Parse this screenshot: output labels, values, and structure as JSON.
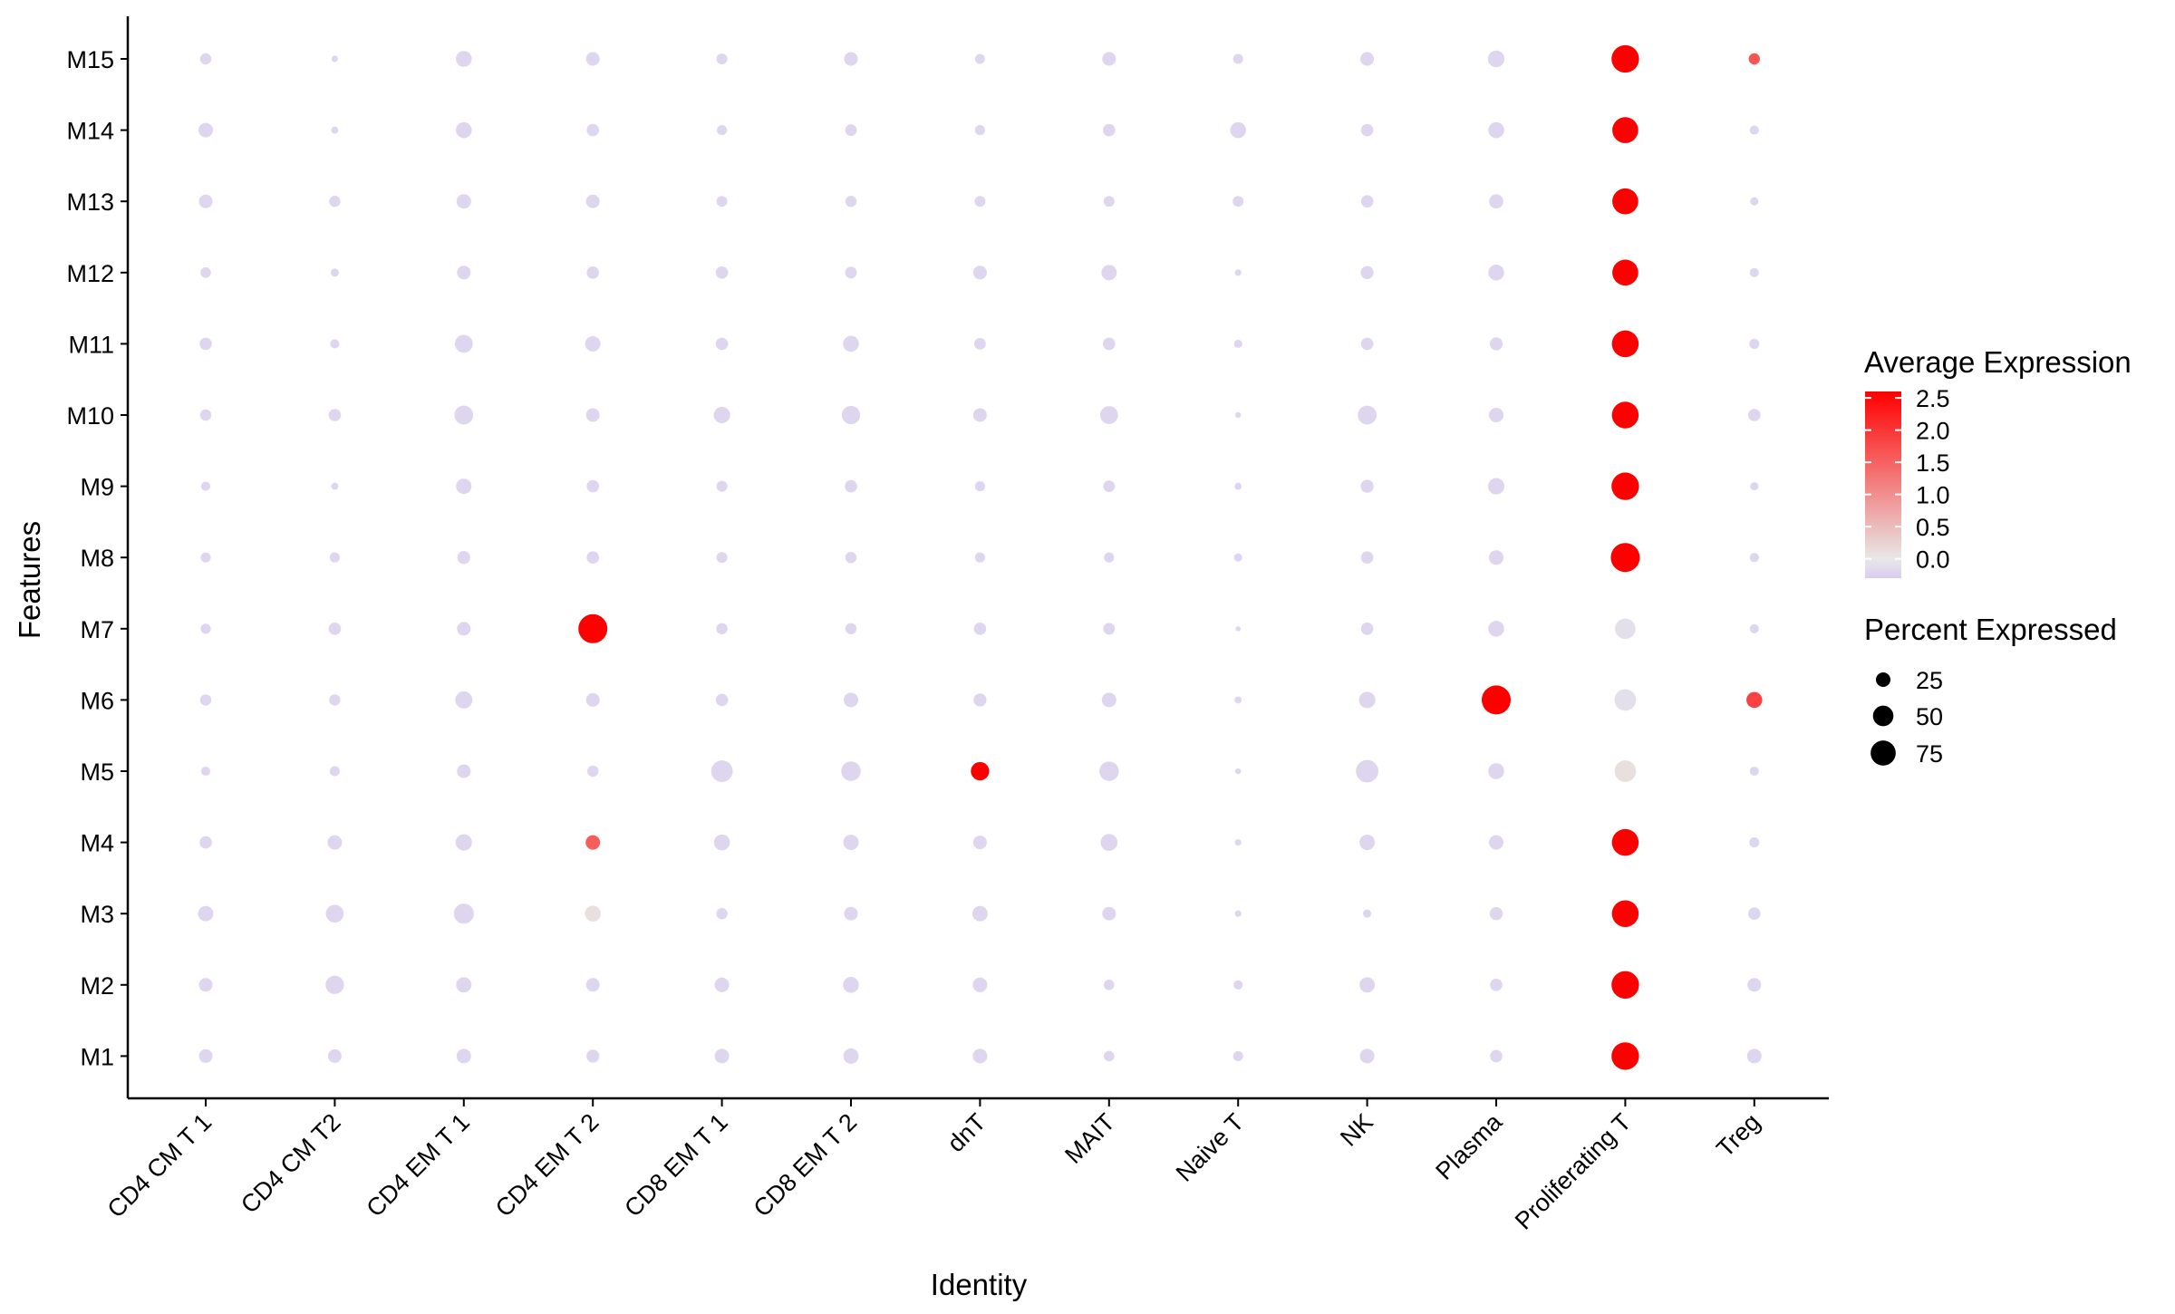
{
  "chart_data": {
    "type": "dot",
    "xlabel": "Identity",
    "ylabel": "Features",
    "categories_x": [
      "CD4 CM T 1",
      "CD4 CM T2",
      "CD4 EM T 1",
      "CD4 EM T 2",
      "CD8 EM T 1",
      "CD8 EM T 2",
      "dnT",
      "MAIT",
      "Naive T",
      "NK",
      "Plasma",
      "Proliferating T",
      "Treg"
    ],
    "categories_y": [
      "M1",
      "M2",
      "M3",
      "M4",
      "M5",
      "M6",
      "M7",
      "M8",
      "M9",
      "M10",
      "M11",
      "M12",
      "M13",
      "M14",
      "M15"
    ],
    "color_scale": {
      "title": "Average Expression",
      "low_color": "#d9ccf2",
      "mid_color": "#e8e8e8",
      "high_color": "#ff0000",
      "ticks": [
        0.0,
        0.5,
        1.0,
        1.5,
        2.0,
        2.5
      ],
      "tick_labels": [
        "0.0",
        "0.5",
        "1.0",
        "1.5",
        "2.0",
        "2.5"
      ],
      "domain": [
        -0.3,
        2.6
      ]
    },
    "size_scale": {
      "title": "Percent Expressed",
      "values": [
        25,
        50,
        75
      ],
      "labels": [
        "25",
        "50",
        "75"
      ]
    },
    "grid": false,
    "legend_position": "right",
    "percent_expressed": [
      [
        22,
        22,
        25,
        20,
        25,
        28,
        25,
        13,
        12,
        25,
        18,
        90,
        25
      ],
      [
        22,
        40,
        28,
        22,
        25,
        30,
        25,
        13,
        10,
        28,
        18,
        90,
        22
      ],
      [
        28,
        38,
        48,
        30,
        15,
        22,
        28,
        22,
        5,
        8,
        20,
        85,
        18
      ],
      [
        18,
        25,
        32,
        25,
        30,
        28,
        22,
        34,
        5,
        28,
        25,
        85,
        12
      ],
      [
        10,
        12,
        22,
        15,
        55,
        45,
        40,
        45,
        4,
        60,
        30,
        55,
        10
      ],
      [
        15,
        15,
        35,
        22,
        18,
        25,
        20,
        25,
        6,
        32,
        100,
        55,
        30
      ],
      [
        12,
        18,
        22,
        100,
        15,
        15,
        18,
        16,
        3,
        18,
        30,
        50,
        10
      ],
      [
        12,
        12,
        20,
        18,
        14,
        15,
        12,
        12,
        8,
        18,
        25,
        100,
        10
      ],
      [
        10,
        6,
        28,
        18,
        14,
        18,
        12,
        16,
        6,
        20,
        32,
        90,
        8
      ],
      [
        15,
        18,
        42,
        22,
        32,
        40,
        22,
        38,
        4,
        42,
        25,
        85,
        18
      ],
      [
        18,
        10,
        38,
        28,
        18,
        30,
        16,
        18,
        8,
        18,
        20,
        85,
        12
      ],
      [
        13,
        8,
        22,
        18,
        18,
        16,
        22,
        28,
        5,
        20,
        30,
        80,
        10
      ],
      [
        22,
        15,
        25,
        22,
        14,
        15,
        14,
        14,
        14,
        18,
        24,
        80,
        8
      ],
      [
        25,
        6,
        30,
        18,
        12,
        16,
        12,
        18,
        30,
        18,
        30,
        80,
        10
      ],
      [
        15,
        5,
        30,
        22,
        14,
        22,
        12,
        22,
        12,
        22,
        33,
        90,
        15
      ]
    ],
    "average_expression": [
      [
        -0.2,
        -0.2,
        -0.2,
        -0.2,
        -0.2,
        -0.2,
        -0.2,
        -0.2,
        -0.2,
        -0.2,
        -0.2,
        2.6,
        -0.2
      ],
      [
        -0.2,
        -0.2,
        -0.2,
        -0.2,
        -0.2,
        -0.2,
        -0.2,
        -0.2,
        -0.2,
        -0.2,
        -0.2,
        2.6,
        -0.2
      ],
      [
        -0.2,
        -0.2,
        -0.2,
        0.1,
        -0.2,
        -0.2,
        -0.2,
        -0.2,
        -0.2,
        -0.2,
        -0.2,
        2.6,
        -0.2
      ],
      [
        -0.2,
        -0.2,
        -0.2,
        1.5,
        -0.2,
        -0.2,
        -0.2,
        -0.2,
        -0.2,
        -0.2,
        -0.2,
        2.6,
        -0.2
      ],
      [
        -0.2,
        -0.2,
        -0.2,
        -0.2,
        -0.2,
        -0.2,
        2.6,
        -0.2,
        -0.2,
        -0.2,
        -0.2,
        0.1,
        -0.2
      ],
      [
        -0.2,
        -0.2,
        -0.2,
        -0.2,
        -0.2,
        -0.2,
        -0.2,
        -0.2,
        -0.2,
        -0.2,
        2.6,
        -0.1,
        1.8
      ],
      [
        -0.2,
        -0.2,
        -0.2,
        2.6,
        -0.2,
        -0.2,
        -0.2,
        -0.2,
        -0.2,
        -0.2,
        -0.2,
        -0.1,
        -0.2
      ],
      [
        -0.2,
        -0.2,
        -0.2,
        -0.2,
        -0.2,
        -0.2,
        -0.2,
        -0.2,
        -0.2,
        -0.2,
        -0.2,
        2.6,
        -0.2
      ],
      [
        -0.2,
        -0.2,
        -0.2,
        -0.2,
        -0.2,
        -0.2,
        -0.2,
        -0.2,
        -0.2,
        -0.2,
        -0.2,
        2.6,
        -0.2
      ],
      [
        -0.2,
        -0.2,
        -0.2,
        -0.2,
        -0.2,
        -0.2,
        -0.2,
        -0.2,
        -0.2,
        -0.2,
        -0.2,
        2.6,
        -0.2
      ],
      [
        -0.2,
        -0.2,
        -0.2,
        -0.2,
        -0.2,
        -0.2,
        -0.2,
        -0.2,
        -0.2,
        -0.2,
        -0.2,
        2.6,
        -0.2
      ],
      [
        -0.2,
        -0.2,
        -0.2,
        -0.2,
        -0.2,
        -0.2,
        -0.2,
        -0.2,
        -0.2,
        -0.2,
        -0.2,
        2.6,
        -0.2
      ],
      [
        -0.2,
        -0.2,
        -0.2,
        -0.2,
        -0.2,
        -0.2,
        -0.2,
        -0.2,
        -0.2,
        -0.2,
        -0.2,
        2.6,
        -0.2
      ],
      [
        -0.2,
        -0.2,
        -0.2,
        -0.2,
        -0.2,
        -0.2,
        -0.2,
        -0.2,
        -0.2,
        -0.2,
        -0.2,
        2.6,
        -0.2
      ],
      [
        -0.2,
        -0.2,
        -0.2,
        -0.2,
        -0.2,
        -0.2,
        -0.2,
        -0.2,
        -0.2,
        -0.2,
        -0.2,
        2.6,
        1.6
      ]
    ]
  }
}
